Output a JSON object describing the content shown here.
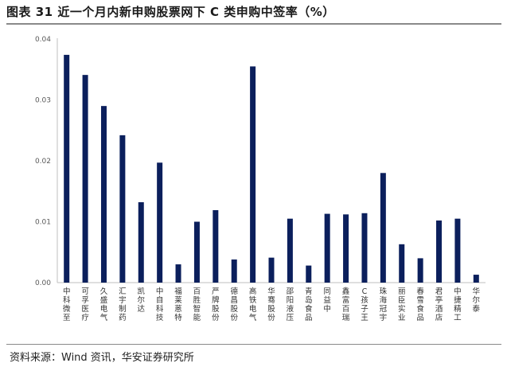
{
  "figure": {
    "title": "图表 31 近一个月内新申购股票网下 C 类申购中签率（%）",
    "source": "资料来源：Wind 资讯，华安证券研究所"
  },
  "chart_data": {
    "type": "bar",
    "title": "",
    "xlabel": "",
    "ylabel": "",
    "ylim": [
      0,
      0.04
    ],
    "yticks": [
      "0.00",
      "0.01",
      "0.02",
      "0.03",
      "0.04"
    ],
    "grid": false,
    "bar_color": "#0b1f5c",
    "axis_color": "#bfbfbf",
    "categories": [
      "中科微至",
      "可孚医疗",
      "久盛电气",
      "汇宇制药",
      "凯尔达",
      "中自科技",
      "福莱蒽特",
      "百胜智能",
      "严牌股份",
      "德昌股份",
      "高铁电气",
      "华骞股份",
      "邵阳液压",
      "青岛食品",
      "同益中",
      "鑫富百瑞",
      "C孩子王",
      "珠海冠宇",
      "丽臣实业",
      "春雪食品",
      "君亭酒店",
      "中捷精工",
      "华尔泰"
    ],
    "values": [
      0.0374,
      0.0341,
      0.029,
      0.0242,
      0.0132,
      0.0197,
      0.003,
      0.01,
      0.0119,
      0.0038,
      0.0355,
      0.0041,
      0.0105,
      0.0028,
      0.0113,
      0.0112,
      0.0114,
      0.018,
      0.0063,
      0.004,
      0.0102,
      0.0105,
      0.0013
    ]
  }
}
